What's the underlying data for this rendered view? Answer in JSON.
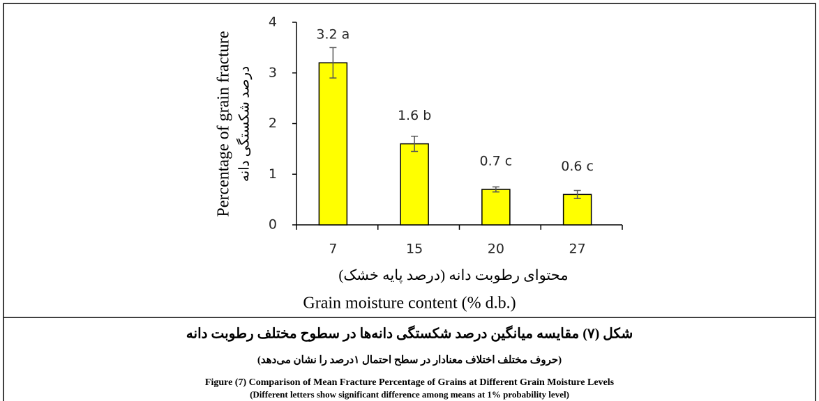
{
  "chart_data": {
    "type": "bar",
    "x_label": "Grain moisture content (% d.b.)",
    "x_label_fa": "محتوای رطوبت دانه (درصد پایه خشک)",
    "y_label": "Percentage of grain fracture",
    "y_label_fa": "درصد شکستگی دانه",
    "categories": [
      "7",
      "15",
      "20",
      "27"
    ],
    "values": [
      3.2,
      1.6,
      0.7,
      0.6
    ],
    "value_labels": [
      "3.2 a",
      "1.6 b",
      "0.7 c",
      "0.6 c"
    ],
    "errors": [
      0.3,
      0.15,
      0.05,
      0.08
    ],
    "color": "#ffff00",
    "ylim": [
      0,
      4
    ],
    "yticks": [
      0,
      1,
      2,
      3,
      4
    ],
    "grid": false
  },
  "caption": {
    "title_fa": "شکل (۷) مقایسه میانگین درصد شکستگی دانه‌ها در سطوح مختلف رطوبت دانه",
    "note_fa": "(حروف مختلف اختلاف معنادار در سطح احتمال ۱درصد را نشان می‌دهد)",
    "title_en": "Figure (7) Comparison of Mean Fracture Percentage of Grains at Different Grain Moisture Levels",
    "note_en": "(Different letters show significant difference among means at 1% probability level)"
  }
}
